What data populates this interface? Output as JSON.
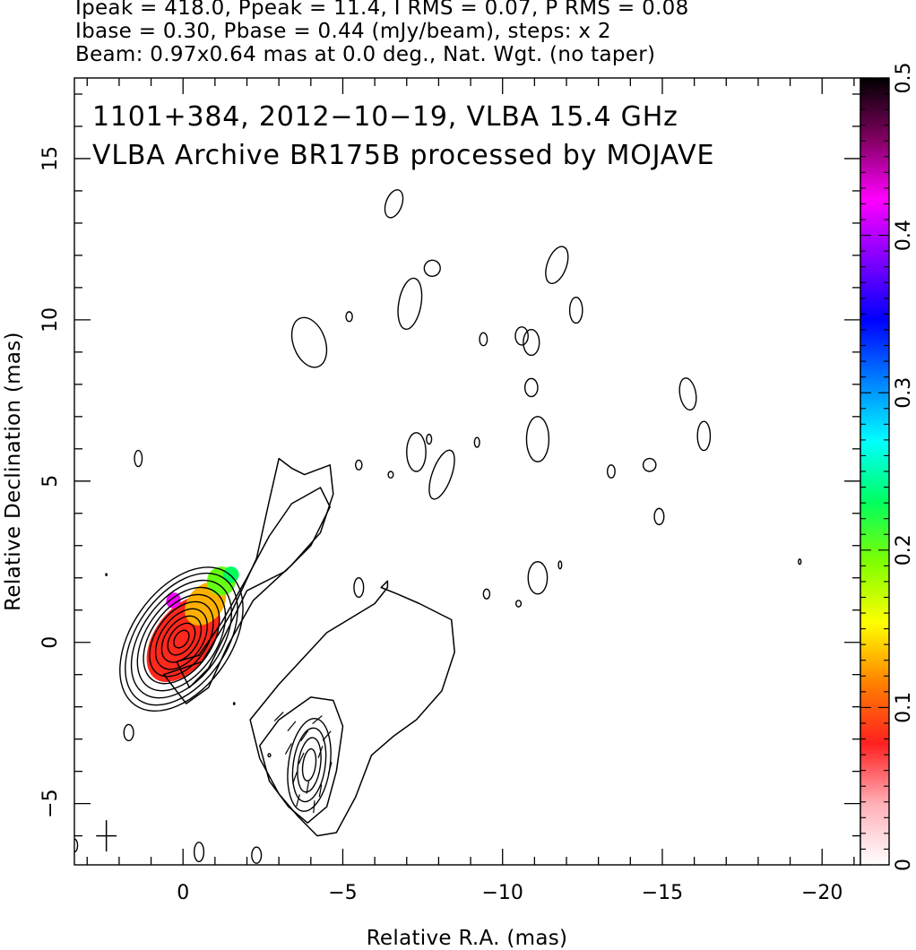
{
  "header": {
    "line1": "Ipeak = 418.0, Ppeak = 11.4, I RMS = 0.07, P RMS = 0.08",
    "line2": "Ibase = 0.30, Pbase = 0.44 (mJy/beam), steps: x 2",
    "line3": "Beam: 0.97x0.64 mas at 0.0 deg., Nat. Wgt. (no taper)"
  },
  "chart_data": {
    "type": "heatmap",
    "title_lines": [
      "1101+384, 2012−10−19, VLBA 15.4 GHz",
      "VLBA Archive BR175B processed by MOJAVE"
    ],
    "xlabel": "Relative R.A. (mas)",
    "ylabel": "Relative Declination (mas)",
    "xlim": [
      3.4,
      -21.2
    ],
    "ylim": [
      -6.9,
      17.5
    ],
    "x_ticks": [
      0,
      -5,
      -10,
      -15,
      -20
    ],
    "x_tick_labels": [
      "0",
      "−5",
      "−10",
      "−15",
      "−20"
    ],
    "y_ticks": [
      -5,
      0,
      5,
      10,
      15
    ],
    "y_tick_labels": [
      "−5",
      "0",
      "5",
      "10",
      "15"
    ],
    "colorbar": {
      "range": [
        0,
        0.5
      ],
      "ticks": [
        0,
        0.1,
        0.2,
        0.3,
        0.4,
        0.5
      ],
      "tick_labels": [
        "0",
        "0.1",
        "0.2",
        "0.3",
        "0.4",
        "0.5"
      ],
      "stops": [
        "#ffffff",
        "#ffb0b8",
        "#ff2020",
        "#ff8000",
        "#ffff00",
        "#80ff00",
        "#00ff60",
        "#00ffff",
        "#0080ff",
        "#0000ff",
        "#8000ff",
        "#ff00ff",
        "#800060",
        "#000000"
      ]
    },
    "core": {
      "center": [
        0.05,
        0.1
      ],
      "angle_deg": 35,
      "contour_semi_axes": [
        [
          0.2,
          0.3
        ],
        [
          0.35,
          0.55
        ],
        [
          0.5,
          0.8
        ],
        [
          0.65,
          1.05
        ],
        [
          0.8,
          1.3
        ],
        [
          0.95,
          1.55
        ],
        [
          1.1,
          1.8
        ],
        [
          1.25,
          2.05
        ],
        [
          1.4,
          2.3
        ],
        [
          1.55,
          2.5
        ]
      ]
    },
    "southern_component": {
      "center": [
        -3.95,
        -3.8
      ],
      "angle_deg": 8,
      "contour_semi_axes": [
        [
          0.2,
          0.5
        ],
        [
          0.35,
          0.85
        ],
        [
          0.5,
          1.15
        ],
        [
          0.65,
          1.45
        ]
      ]
    },
    "extended_contours": [
      [
        [
          0.2,
          -0.6
        ],
        [
          -0.5,
          -0.4
        ],
        [
          -1.2,
          0.6
        ],
        [
          -2.0,
          2.0
        ],
        [
          -2.7,
          3.3
        ],
        [
          -3.4,
          4.3
        ],
        [
          -4.3,
          4.8
        ],
        [
          -4.6,
          4.2
        ],
        [
          -4.0,
          3.0
        ],
        [
          -3.2,
          2.2
        ],
        [
          -2.0,
          1.6
        ],
        [
          -1.3,
          0.2
        ],
        [
          -0.8,
          -0.8
        ],
        [
          -0.2,
          -1.4
        ]
      ],
      [
        [
          0.6,
          -1.0
        ],
        [
          -0.6,
          -0.6
        ],
        [
          -1.5,
          0.9
        ],
        [
          -2.3,
          2.6
        ],
        [
          -2.7,
          4.4
        ],
        [
          -3.0,
          5.7
        ],
        [
          -3.4,
          5.4
        ],
        [
          -3.8,
          5.2
        ],
        [
          -4.6,
          5.5
        ],
        [
          -4.7,
          4.6
        ],
        [
          -4.3,
          3.4
        ],
        [
          -3.4,
          2.4
        ],
        [
          -2.2,
          1.3
        ],
        [
          -1.4,
          -0.1
        ],
        [
          -0.8,
          -1.4
        ],
        [
          -0.1,
          -1.9
        ]
      ],
      [
        [
          -2.1,
          -2.4
        ],
        [
          -3.0,
          -1.3
        ],
        [
          -4.5,
          0.3
        ],
        [
          -6.0,
          1.2
        ],
        [
          -6.4,
          1.7
        ],
        [
          -6.4,
          1.9
        ],
        [
          -6.2,
          1.7
        ],
        [
          -6.7,
          1.5
        ],
        [
          -7.4,
          1.2
        ],
        [
          -8.4,
          0.7
        ],
        [
          -8.5,
          -0.3
        ],
        [
          -8.1,
          -1.5
        ],
        [
          -7.3,
          -2.4
        ],
        [
          -6.6,
          -2.9
        ],
        [
          -5.9,
          -3.5
        ],
        [
          -5.4,
          -4.8
        ],
        [
          -4.8,
          -5.9
        ],
        [
          -4.2,
          -6.0
        ],
        [
          -3.6,
          -5.4
        ],
        [
          -3.0,
          -4.7
        ],
        [
          -2.4,
          -3.6
        ]
      ],
      [
        [
          -2.4,
          -3.2
        ],
        [
          -3.0,
          -2.4
        ],
        [
          -4.0,
          -1.7
        ],
        [
          -4.7,
          -1.8
        ],
        [
          -5.0,
          -2.6
        ],
        [
          -4.8,
          -4.0
        ],
        [
          -4.5,
          -5.1
        ],
        [
          -3.9,
          -5.6
        ],
        [
          -3.3,
          -5.1
        ],
        [
          -2.7,
          -4.3
        ]
      ]
    ],
    "polarization_vectors": [
      [
        -3.0,
        -2.3,
        45
      ],
      [
        -3.4,
        -2.6,
        40
      ],
      [
        -3.8,
        -2.9,
        35
      ],
      [
        -4.2,
        -2.4,
        50
      ],
      [
        -4.5,
        -2.9,
        40
      ],
      [
        -3.3,
        -3.3,
        30
      ],
      [
        -3.7,
        -3.6,
        25
      ],
      [
        -4.3,
        -3.4,
        20
      ],
      [
        -4.6,
        -3.9,
        15
      ],
      [
        -3.5,
        -4.2,
        20
      ],
      [
        -3.9,
        -4.5,
        10
      ],
      [
        -4.3,
        -4.6,
        10
      ],
      [
        -3.6,
        -4.9,
        15
      ],
      [
        -4.1,
        -5.1,
        5
      ]
    ],
    "fractional_polarization_blobs": [
      {
        "center": [
          0.0,
          0.1
        ],
        "semi_axes": [
          0.9,
          1.5
        ],
        "angle_deg": 35,
        "value": 0.08
      },
      {
        "center": [
          -0.7,
          1.2
        ],
        "semi_axes": [
          0.55,
          0.75
        ],
        "angle_deg": 40,
        "value": 0.13
      },
      {
        "center": [
          -1.2,
          1.9
        ],
        "semi_axes": [
          0.45,
          0.45
        ],
        "angle_deg": 0,
        "value": 0.2
      },
      {
        "center": [
          -1.5,
          2.1
        ],
        "semi_axes": [
          0.25,
          0.25
        ],
        "angle_deg": 0,
        "value": 0.23
      },
      {
        "center": [
          0.3,
          1.3
        ],
        "semi_axes": [
          0.22,
          0.25
        ],
        "angle_deg": 30,
        "value": 0.42
      }
    ],
    "noise_islands": [
      [
        -3.95,
        9.3,
        0.5,
        0.8,
        -20
      ],
      [
        -5.2,
        10.1,
        0.1,
        0.15,
        0
      ],
      [
        -6.6,
        13.6,
        0.25,
        0.45,
        20
      ],
      [
        -7.1,
        10.5,
        0.35,
        0.8,
        10
      ],
      [
        -7.8,
        11.6,
        0.25,
        0.25,
        30
      ],
      [
        -9.4,
        9.4,
        0.12,
        0.2,
        0
      ],
      [
        -10.6,
        9.5,
        0.2,
        0.28,
        0
      ],
      [
        -10.9,
        9.3,
        0.25,
        0.4,
        0
      ],
      [
        -11.7,
        11.7,
        0.3,
        0.6,
        20
      ],
      [
        -12.3,
        10.3,
        0.2,
        0.4,
        0
      ],
      [
        -10.9,
        7.9,
        0.2,
        0.28,
        0
      ],
      [
        -11.1,
        6.3,
        0.35,
        0.7,
        0
      ],
      [
        -7.3,
        5.9,
        0.3,
        0.6,
        0
      ],
      [
        -7.7,
        6.3,
        0.08,
        0.15,
        0
      ],
      [
        -8.1,
        5.2,
        0.3,
        0.8,
        20
      ],
      [
        -9.2,
        6.2,
        0.08,
        0.15,
        0
      ],
      [
        -5.5,
        5.5,
        0.1,
        0.15,
        0
      ],
      [
        -6.5,
        5.2,
        0.08,
        0.1,
        0
      ],
      [
        -15.8,
        7.7,
        0.25,
        0.5,
        -10
      ],
      [
        -16.3,
        6.4,
        0.2,
        0.45,
        0
      ],
      [
        -13.4,
        5.3,
        0.12,
        0.2,
        0
      ],
      [
        -14.6,
        5.5,
        0.2,
        0.2,
        0
      ],
      [
        -14.9,
        3.9,
        0.15,
        0.25,
        0
      ],
      [
        -11.1,
        2.0,
        0.3,
        0.5,
        0
      ],
      [
        -11.8,
        2.4,
        0.05,
        0.12,
        0
      ],
      [
        -9.5,
        1.5,
        0.1,
        0.15,
        0
      ],
      [
        -10.5,
        1.2,
        0.08,
        0.1,
        0
      ],
      [
        -5.5,
        1.7,
        0.15,
        0.3,
        0
      ],
      [
        1.4,
        5.7,
        0.12,
        0.25,
        0
      ],
      [
        1.7,
        -2.8,
        0.15,
        0.25,
        0
      ],
      [
        -0.5,
        -6.5,
        0.15,
        0.3,
        0
      ],
      [
        -2.3,
        -6.6,
        0.15,
        0.25,
        0
      ],
      [
        -19.3,
        2.5,
        0.04,
        0.08,
        0
      ],
      [
        2.4,
        2.1,
        0.02,
        0.03,
        0
      ],
      [
        -1.6,
        -1.9,
        0.02,
        0.03,
        0
      ],
      [
        -2.7,
        -3.5,
        0.04,
        0.05,
        0
      ],
      [
        3.4,
        -6.3,
        0.1,
        0.2,
        0
      ]
    ],
    "beam": {
      "center": [
        2.4,
        -6.0
      ],
      "major": 0.97,
      "minor": 0.64,
      "pa_deg": 0
    }
  }
}
